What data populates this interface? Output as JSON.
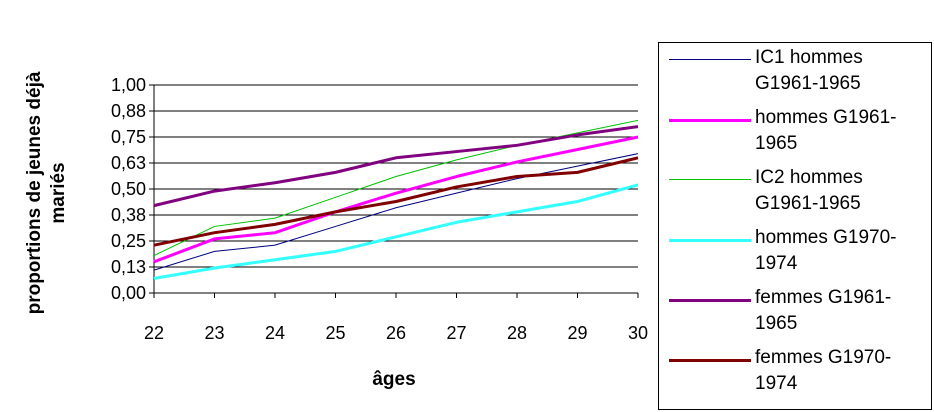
{
  "chart_data": {
    "type": "line",
    "xlabel": "âges",
    "ylabel": "proportions de jeunes déjà mariés",
    "x": [
      22,
      23,
      24,
      25,
      26,
      27,
      28,
      29,
      30
    ],
    "y_ticks": [
      "0,00",
      "0,13",
      "0,25",
      "0,38",
      "0,50",
      "0,63",
      "0,75",
      "0,88",
      "1,00"
    ],
    "ylim": [
      0,
      1
    ],
    "grid": "horizontal",
    "legend_position": "right",
    "series": [
      {
        "name": "IC1 hommes G1961-1965",
        "color": "#000080",
        "width": 1,
        "values": [
          0.11,
          0.2,
          0.23,
          0.32,
          0.41,
          0.48,
          0.55,
          0.61,
          0.67
        ]
      },
      {
        "name": "hommes G1961-1965",
        "color": "#FF00FF",
        "width": 3,
        "values": [
          0.15,
          0.26,
          0.29,
          0.39,
          0.48,
          0.56,
          0.63,
          0.69,
          0.75
        ]
      },
      {
        "name": "IC2 hommes G1961-1965",
        "color": "#00C000",
        "width": 1,
        "values": [
          0.18,
          0.32,
          0.36,
          0.46,
          0.56,
          0.64,
          0.71,
          0.77,
          0.83
        ]
      },
      {
        "name": "hommes G1970-1974",
        "color": "#33FFFF",
        "width": 3,
        "values": [
          0.07,
          0.12,
          0.16,
          0.2,
          0.27,
          0.34,
          0.39,
          0.44,
          0.52
        ]
      },
      {
        "name": "femmes G1961-1965",
        "color": "#800080",
        "width": 3,
        "values": [
          0.42,
          0.49,
          0.53,
          0.58,
          0.65,
          0.68,
          0.71,
          0.76,
          0.8
        ]
      },
      {
        "name": "femmes G1970-1974",
        "color": "#800000",
        "width": 3,
        "values": [
          0.23,
          0.29,
          0.33,
          0.39,
          0.44,
          0.51,
          0.56,
          0.58,
          0.65
        ]
      }
    ]
  }
}
